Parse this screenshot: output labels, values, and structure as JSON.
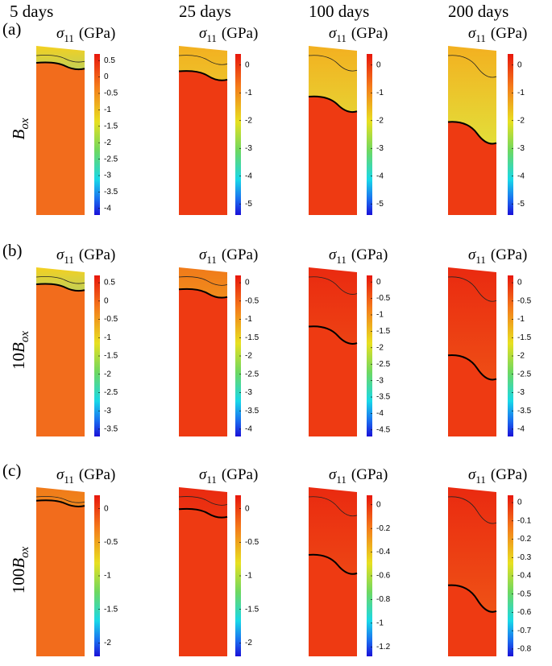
{
  "columns": [
    "5 days",
    "25 days",
    "100 days",
    "200 days"
  ],
  "colorbar_label": {
    "symbol": "σ",
    "sub": "11",
    "unit": "(GPa)"
  },
  "rows": [
    {
      "letter": "(a)",
      "prefix": "",
      "main": "B",
      "sub": "ox",
      "colorbars": [
        [
          "0.5",
          "0",
          "-0.5",
          "-1",
          "-1.5",
          "-2",
          "-2.5",
          "-3",
          "-3.5",
          "-4"
        ],
        [
          "0",
          "-1",
          "-2",
          "-3",
          "-4",
          "-5"
        ],
        [
          "0",
          "-1",
          "-2",
          "-3",
          "-4",
          "-5"
        ],
        [
          "0",
          "-1",
          "-2",
          "-3",
          "-4",
          "-5"
        ]
      ]
    },
    {
      "letter": "(b)",
      "prefix": "10",
      "main": "B",
      "sub": "ox",
      "colorbars": [
        [
          "0.5",
          "0",
          "-0.5",
          "-1",
          "-1.5",
          "-2",
          "-2.5",
          "-3",
          "-3.5"
        ],
        [
          "0",
          "-0.5",
          "-1",
          "-1.5",
          "-2",
          "-2.5",
          "-3",
          "-3.5",
          "-4"
        ],
        [
          "0",
          "-0.5",
          "-1",
          "-1.5",
          "-2",
          "-2.5",
          "-3",
          "-3.5",
          "-4",
          "-4.5"
        ],
        [
          "0",
          "-0.5",
          "-1",
          "-1.5",
          "-2",
          "-2.5",
          "-3",
          "-3.5",
          "-4"
        ]
      ]
    },
    {
      "letter": "(c)",
      "prefix": "100",
      "main": "B",
      "sub": "ox",
      "colorbars": [
        [
          "0",
          "-0.5",
          "-1",
          "-1.5",
          "-2"
        ],
        [
          "0",
          "-0.5",
          "-1",
          "-1.5",
          "-2"
        ],
        [
          "0",
          "-0.2",
          "-0.4",
          "-0.6",
          "-0.8",
          "-1",
          "-1.2"
        ],
        [
          "0",
          "-0.1",
          "-0.2",
          "-0.3",
          "-0.4",
          "-0.5",
          "-0.6",
          "-0.7",
          "-0.8"
        ]
      ]
    }
  ]
}
